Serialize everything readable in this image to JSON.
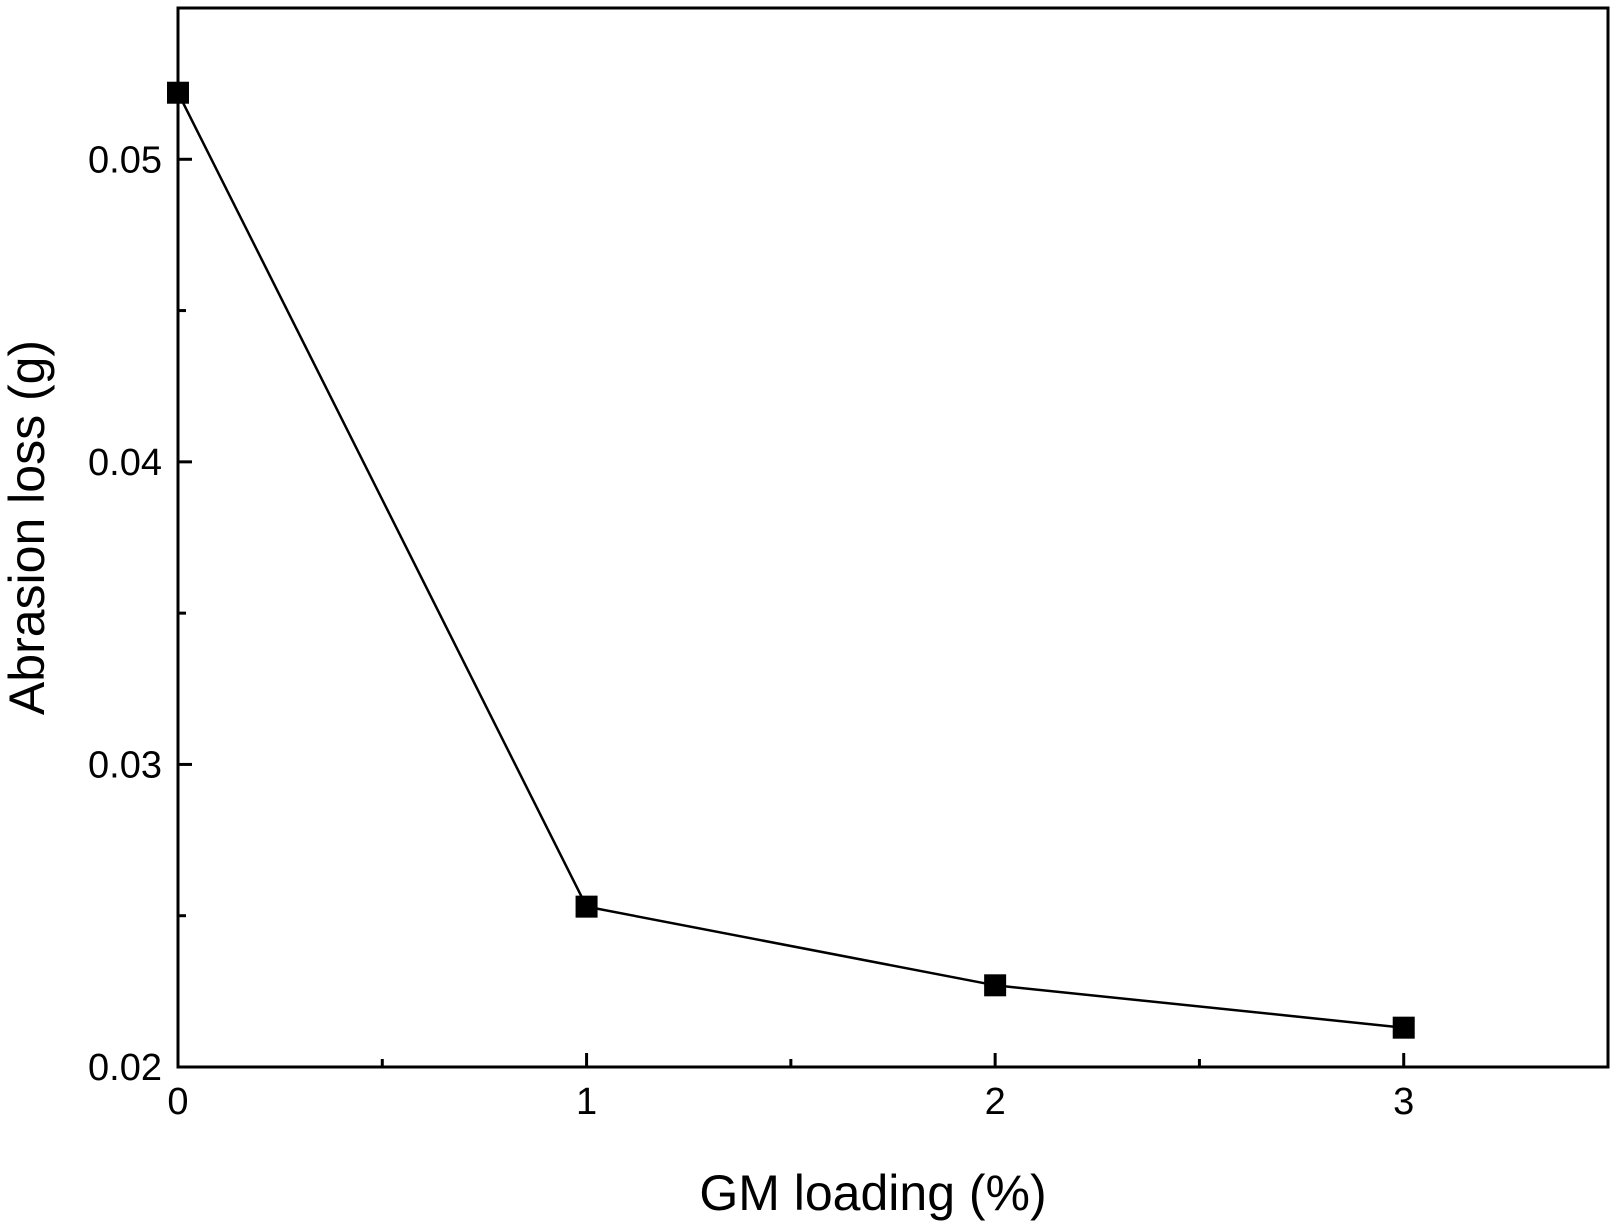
{
  "chart_data": {
    "type": "line",
    "xlabel": "GM loading (%)",
    "ylabel": "Abrasion loss (g)",
    "xlim": [
      0,
      3.5
    ],
    "ylim": [
      0.02,
      0.055
    ],
    "x_major_ticks": [
      0,
      1,
      2,
      3
    ],
    "x_minor_ticks": [
      0.5,
      1.5,
      2.5
    ],
    "y_major_ticks": [
      0.02,
      0.03,
      0.04,
      0.05
    ],
    "y_minor_ticks": [
      0.025,
      0.035,
      0.045
    ],
    "x_tick_labels": [
      "0",
      "1",
      "2",
      "3"
    ],
    "y_tick_labels": [
      "0.02",
      "0.03",
      "0.04",
      "0.05"
    ],
    "grid": false,
    "marker": "square",
    "color": "#000000",
    "series": [
      {
        "x": [
          0,
          1,
          2,
          3
        ],
        "y": [
          0.0522,
          0.0253,
          0.0227,
          0.0213
        ]
      }
    ]
  }
}
